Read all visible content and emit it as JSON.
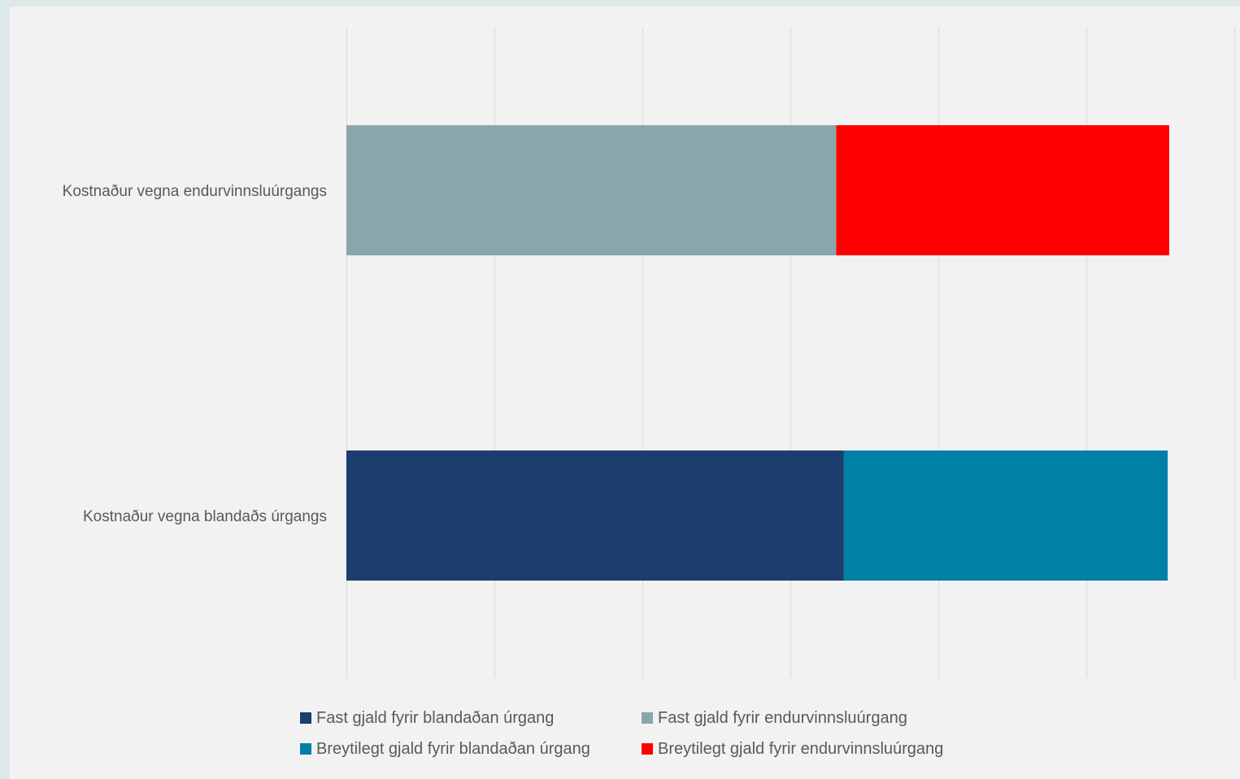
{
  "chart_data": {
    "type": "bar",
    "orientation": "horizontal",
    "stacked": true,
    "categories": [
      "Kostnaður vegna endurvinnsluúrgangs",
      "Kostnaður vegna blandaðs úrgangs"
    ],
    "series": [
      {
        "name": "Fast gjald fyrir blandaðan úrgang",
        "values": [
          0,
          3.36
        ],
        "color": "#1c3d6e"
      },
      {
        "name": "Fast gjald fyrir endurvinnsluúrgang",
        "values": [
          3.31,
          0
        ],
        "color": "#89a6aa"
      },
      {
        "name": "Breytilegt gjald fyrir blandaðan úrgang",
        "values": [
          0,
          2.19
        ],
        "color": "#0080a6"
      },
      {
        "name": "Breytilegt gjald fyrir endurvinnsluúrgang",
        "values": [
          2.25,
          0
        ],
        "color": "#ff0000"
      }
    ],
    "xlim": [
      0,
      6
    ],
    "x_gridlines": [
      0,
      1,
      2,
      3,
      4,
      5,
      6
    ],
    "x_tick_labels_shown": false,
    "grid": true,
    "legend_position": "bottom"
  }
}
